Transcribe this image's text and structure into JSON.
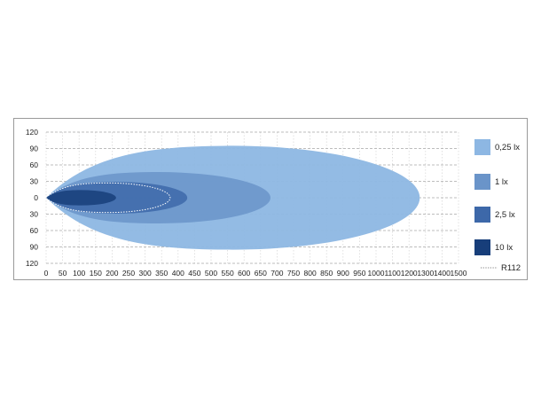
{
  "chart_data": {
    "type": "area",
    "title": "",
    "xlabel": "",
    "ylabel": "",
    "x_ticks": [
      0,
      50,
      100,
      150,
      200,
      250,
      300,
      350,
      400,
      450,
      500,
      550,
      600,
      650,
      700,
      750,
      800,
      850,
      900,
      950,
      1000,
      1100,
      1200,
      1300,
      1400,
      1500
    ],
    "y_ticks": [
      "120",
      "90",
      "60",
      "30",
      "0",
      "30",
      "60",
      "90",
      "120"
    ],
    "ylim": [
      -120,
      120
    ],
    "xlim": [
      0,
      1500
    ],
    "grid": true,
    "legend_placement": "right",
    "series": [
      {
        "name": "0,25 lx",
        "color": "#8db7e3",
        "reach": 1265,
        "half_width": 95
      },
      {
        "name": "1 lx",
        "color": "#6a94c9",
        "reach": 680,
        "half_width": 47
      },
      {
        "name": "2,5 lx",
        "color": "#3d68a9",
        "reach": 428,
        "half_width": 29
      },
      {
        "name": "10 lx",
        "color": "#173e7a",
        "reach": 212,
        "half_width": 14
      }
    ],
    "reference": {
      "name": "R112",
      "style": "dotted",
      "color": "#ffffff",
      "reach": 376,
      "half_width": 27
    }
  }
}
